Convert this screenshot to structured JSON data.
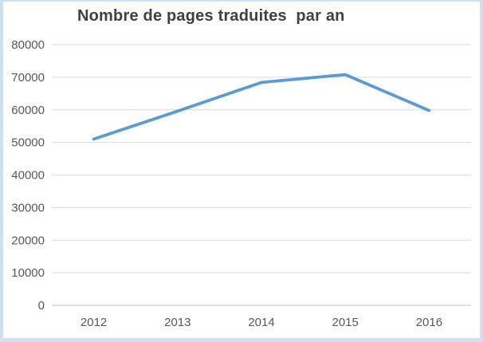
{
  "chart_data": {
    "type": "line",
    "title": "Nombre de pages traduites  par an",
    "categories": [
      "2012",
      "2013",
      "2014",
      "2015",
      "2016"
    ],
    "values": [
      51000,
      59600,
      68400,
      70800,
      59800
    ],
    "xlabel": "",
    "ylabel": "",
    "ylim": [
      0,
      80000
    ],
    "y_ticks": [
      0,
      10000,
      20000,
      30000,
      40000,
      50000,
      60000,
      70000,
      80000
    ],
    "y_tick_labels": [
      "0",
      "10000",
      "20000",
      "30000",
      "40000",
      "50000",
      "60000",
      "70000",
      "80000"
    ],
    "grid": true,
    "legend": "none",
    "colors": {
      "line": "#5b9bd5",
      "gridline": "#d9d9d9",
      "axis_line": "#bfbfbf",
      "tick_label": "#595959",
      "title": "#404040",
      "frame_border": "#cfe0f0",
      "background": "#ffffff"
    }
  }
}
